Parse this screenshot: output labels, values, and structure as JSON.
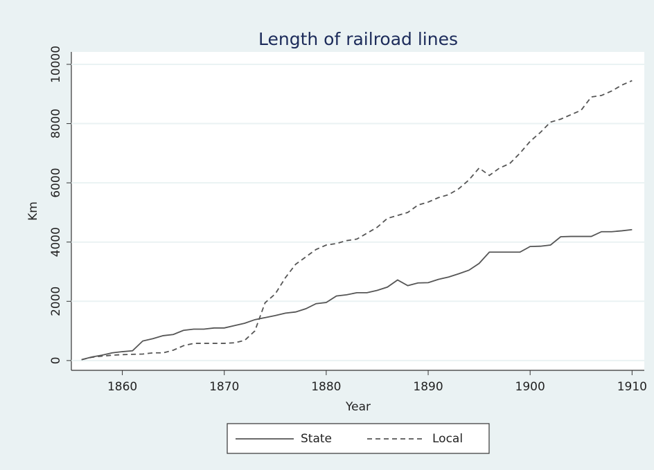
{
  "chart_data": {
    "type": "line",
    "title": "Length of railroad lines",
    "xlabel": "Year",
    "ylabel": "Km",
    "x": [
      1856,
      1857,
      1858,
      1859,
      1860,
      1861,
      1862,
      1863,
      1864,
      1865,
      1866,
      1867,
      1868,
      1869,
      1870,
      1871,
      1872,
      1873,
      1874,
      1875,
      1876,
      1877,
      1878,
      1879,
      1880,
      1881,
      1882,
      1883,
      1884,
      1885,
      1886,
      1887,
      1888,
      1889,
      1890,
      1891,
      1892,
      1893,
      1894,
      1895,
      1896,
      1897,
      1898,
      1899,
      1900,
      1901,
      1902,
      1903,
      1904,
      1905,
      1906,
      1907,
      1908,
      1909,
      1910
    ],
    "series": [
      {
        "name": "State",
        "color": "#555555",
        "line_style": "solid",
        "values": [
          30,
          120,
          180,
          260,
          300,
          330,
          660,
          740,
          840,
          880,
          1020,
          1060,
          1060,
          1100,
          1100,
          1180,
          1260,
          1380,
          1450,
          1520,
          1600,
          1640,
          1750,
          1920,
          1960,
          2180,
          2220,
          2290,
          2290,
          2370,
          2480,
          2720,
          2530,
          2620,
          2630,
          2740,
          2820,
          2930,
          3050,
          3280,
          3660,
          3660,
          3660,
          3660,
          3850,
          3860,
          3900,
          4180,
          4190,
          4190,
          4190,
          4350,
          4350,
          4380,
          4420
        ]
      },
      {
        "name": "Local",
        "color": "#555555",
        "line_style": "dashed",
        "values": [
          30,
          110,
          150,
          180,
          200,
          210,
          220,
          260,
          260,
          350,
          500,
          580,
          580,
          580,
          580,
          600,
          680,
          1000,
          1950,
          2250,
          2800,
          3250,
          3500,
          3750,
          3900,
          3950,
          4050,
          4100,
          4300,
          4500,
          4800,
          4900,
          5000,
          5250,
          5350,
          5500,
          5600,
          5800,
          6100,
          6500,
          6250,
          6500,
          6650,
          7000,
          7400,
          7700,
          8050,
          8150,
          8300,
          8450,
          8900,
          8950,
          9100,
          9300,
          9450
        ]
      }
    ],
    "xlim": [
      1855,
      1911.2
    ],
    "xticks": [
      1860,
      1870,
      1880,
      1890,
      1900,
      1910
    ],
    "ylim": [
      -330,
      10420
    ],
    "yticks": [
      0,
      2000,
      4000,
      6000,
      8000,
      10000
    ],
    "grid": true,
    "legend": "bottom"
  }
}
